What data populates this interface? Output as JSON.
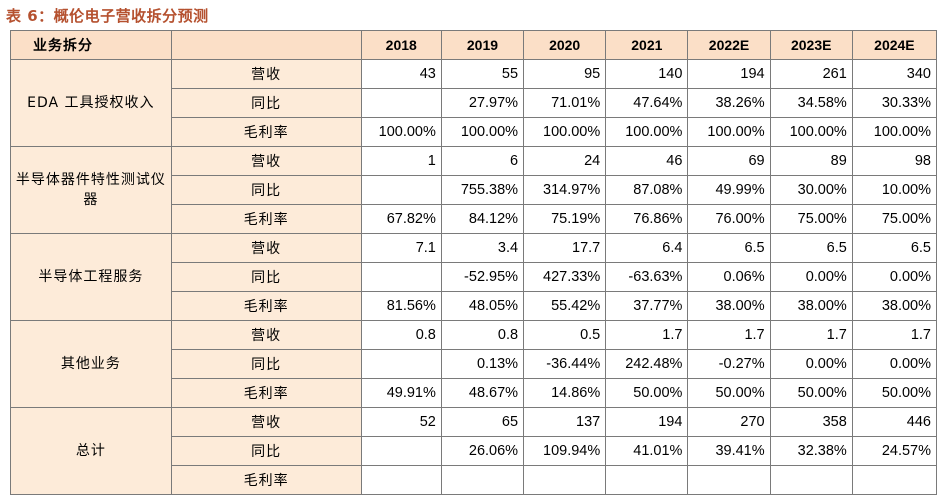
{
  "title": "表 6：概伦电子营收拆分预测",
  "table": {
    "header_label": "业务拆分",
    "years": [
      "2018",
      "2019",
      "2020",
      "2021",
      "2022E",
      "2023E",
      "2024E"
    ],
    "groups": [
      {
        "name": "EDA 工具授权收入",
        "rows": [
          {
            "metric": "营收",
            "values": [
              "43",
              "55",
              "95",
              "140",
              "194",
              "261",
              "340"
            ]
          },
          {
            "metric": "同比",
            "values": [
              "",
              "27.97%",
              "71.01%",
              "47.64%",
              "38.26%",
              "34.58%",
              "30.33%"
            ]
          },
          {
            "metric": "毛利率",
            "values": [
              "100.00%",
              "100.00%",
              "100.00%",
              "100.00%",
              "100.00%",
              "100.00%",
              "100.00%"
            ]
          }
        ]
      },
      {
        "name": "半导体器件特性测试仪器",
        "rows": [
          {
            "metric": "营收",
            "values": [
              "1",
              "6",
              "24",
              "46",
              "69",
              "89",
              "98"
            ]
          },
          {
            "metric": "同比",
            "values": [
              "",
              "755.38%",
              "314.97%",
              "87.08%",
              "49.99%",
              "30.00%",
              "10.00%"
            ]
          },
          {
            "metric": "毛利率",
            "values": [
              "67.82%",
              "84.12%",
              "75.19%",
              "76.86%",
              "76.00%",
              "75.00%",
              "75.00%"
            ]
          }
        ]
      },
      {
        "name": "半导体工程服务",
        "rows": [
          {
            "metric": "营收",
            "values": [
              "7.1",
              "3.4",
              "17.7",
              "6.4",
              "6.5",
              "6.5",
              "6.5"
            ]
          },
          {
            "metric": "同比",
            "values": [
              "",
              "-52.95%",
              "427.33%",
              "-63.63%",
              "0.06%",
              "0.00%",
              "0.00%"
            ]
          },
          {
            "metric": "毛利率",
            "values": [
              "81.56%",
              "48.05%",
              "55.42%",
              "37.77%",
              "38.00%",
              "38.00%",
              "38.00%"
            ]
          }
        ]
      },
      {
        "name": "其他业务",
        "rows": [
          {
            "metric": "营收",
            "values": [
              "0.8",
              "0.8",
              "0.5",
              "1.7",
              "1.7",
              "1.7",
              "1.7"
            ]
          },
          {
            "metric": "同比",
            "values": [
              "",
              "0.13%",
              "-36.44%",
              "242.48%",
              "-0.27%",
              "0.00%",
              "0.00%"
            ]
          },
          {
            "metric": "毛利率",
            "values": [
              "49.91%",
              "48.67%",
              "14.86%",
              "50.00%",
              "50.00%",
              "50.00%",
              "50.00%"
            ]
          }
        ]
      },
      {
        "name": "总计",
        "rows": [
          {
            "metric": "营收",
            "values": [
              "52",
              "65",
              "137",
              "194",
              "270",
              "358",
              "446"
            ]
          },
          {
            "metric": "同比",
            "values": [
              "",
              "26.06%",
              "109.94%",
              "41.01%",
              "39.41%",
              "32.38%",
              "24.57%"
            ]
          },
          {
            "metric": "毛利率",
            "values": [
              "",
              "",
              "",
              "",
              "",
              "",
              ""
            ]
          }
        ]
      }
    ]
  }
}
